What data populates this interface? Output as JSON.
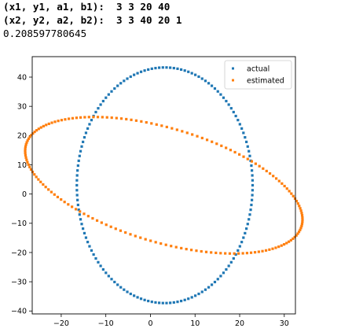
{
  "console": {
    "line1": "(x1, y1, a1, b1):  3 3 20 40",
    "line2": "(x2, y2, a2, b2):  3 3 40 20 1",
    "line3": "0.208597780645"
  },
  "chart_data": {
    "type": "scatter",
    "title": "",
    "xlabel": "",
    "ylabel": "",
    "xlim": [
      -26.5,
      32.5
    ],
    "ylim": [
      -41,
      47
    ],
    "xticks": [
      -20,
      -10,
      0,
      10,
      20,
      30
    ],
    "yticks": [
      -40,
      -30,
      -20,
      -10,
      0,
      10,
      20,
      30,
      40
    ],
    "xtick_labels": [
      "−20",
      "−10",
      "0",
      "10",
      "20",
      "30"
    ],
    "ytick_labels": [
      "−40",
      "−30",
      "−20",
      "−10",
      "0",
      "10",
      "20",
      "30",
      "40"
    ],
    "grid": false,
    "legend": "top-right",
    "series": [
      {
        "name": "actual",
        "color": "#1f77b4",
        "shape": "ellipse",
        "center": [
          3.2,
          3
        ],
        "radii": [
          19.7,
          40.3
        ],
        "rotation_deg": 0,
        "points": 150
      },
      {
        "name": "estimated",
        "color": "#ff7f0e",
        "shape": "ellipse",
        "center": [
          3,
          3
        ],
        "radii": [
          34.3,
          18.3
        ],
        "rotation_deg": -30,
        "points": 170
      }
    ]
  }
}
